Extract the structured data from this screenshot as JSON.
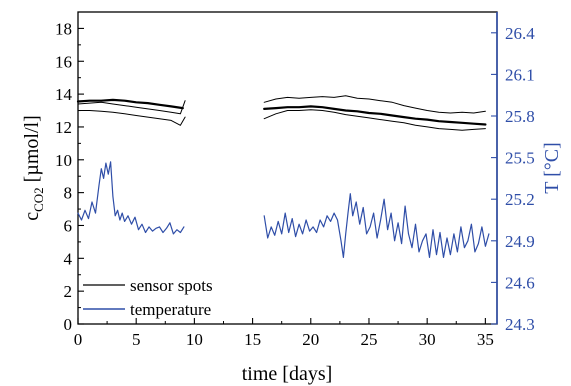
{
  "chart_data": {
    "type": "line",
    "xlabel": "time [days]",
    "ylabel_left": {
      "main": "c",
      "sub": "CO2",
      "unit": " [µmol/l]"
    },
    "ylabel_right": "T [°C]",
    "xlim": [
      0,
      36
    ],
    "ylim_left": [
      0,
      19
    ],
    "ylim_right": [
      24.3,
      26.55
    ],
    "x_ticks": [
      0,
      5,
      10,
      15,
      20,
      25,
      30,
      35
    ],
    "y_left_ticks": [
      0,
      2,
      4,
      6,
      8,
      10,
      12,
      14,
      16,
      18
    ],
    "y_right_ticks": [
      24.3,
      24.6,
      24.9,
      25.2,
      25.5,
      25.8,
      26.1,
      26.4
    ],
    "y_right_tick_labels": [
      "24.3",
      "24.6",
      "24.9",
      "25.2",
      "25.5",
      "25.8",
      "26.1",
      "26.4"
    ],
    "grid": false,
    "legend_position": "bottom-left",
    "legend": [
      {
        "label": "sensor spots",
        "color": "#000000"
      },
      {
        "label": "temperature",
        "color": "#2f4ea8"
      }
    ],
    "colors": {
      "sensor": "#000000",
      "temperature": "#2f4ea8",
      "right_axis": "#2f4ea8",
      "left_axis": "#000000"
    },
    "series": [
      {
        "name": "sensor spots",
        "axis": "left",
        "width": 1.0,
        "segments": [
          {
            "x": [
              0,
              1,
              2,
              3,
              4,
              5,
              6,
              7,
              8,
              8.8,
              9.2
            ],
            "y": [
              13.4,
              13.45,
              13.5,
              13.4,
              13.3,
              13.2,
              13.1,
              13.0,
              12.9,
              12.8,
              13.6
            ]
          },
          {
            "x": [
              16,
              17,
              18,
              19,
              20,
              21,
              22,
              23,
              24,
              25,
              26,
              27,
              28,
              29,
              30,
              31,
              32,
              33,
              34,
              35
            ],
            "y": [
              13.5,
              13.7,
              13.8,
              13.75,
              13.8,
              13.85,
              13.8,
              13.9,
              13.75,
              13.7,
              13.6,
              13.5,
              13.3,
              13.15,
              13.0,
              12.9,
              12.85,
              12.9,
              12.85,
              12.95
            ]
          }
        ]
      },
      {
        "name": "sensor spots",
        "axis": "left",
        "width": 2.2,
        "segments": [
          {
            "x": [
              0,
              1,
              2,
              3,
              4,
              5,
              6,
              7,
              8,
              9
            ],
            "y": [
              13.55,
              13.6,
              13.6,
              13.65,
              13.6,
              13.5,
              13.45,
              13.35,
              13.25,
              13.15
            ]
          },
          {
            "x": [
              16,
              17,
              18,
              19,
              20,
              21,
              22,
              23,
              24,
              25,
              26,
              27,
              28,
              29,
              30,
              31,
              32,
              33,
              34,
              35
            ],
            "y": [
              13.1,
              13.15,
              13.2,
              13.2,
              13.25,
              13.2,
              13.1,
              13.0,
              12.95,
              12.85,
              12.8,
              12.7,
              12.6,
              12.5,
              12.45,
              12.35,
              12.3,
              12.25,
              12.2,
              12.15
            ]
          }
        ]
      },
      {
        "name": "sensor spots",
        "axis": "left",
        "width": 1.0,
        "segments": [
          {
            "x": [
              0,
              1,
              2,
              3,
              4,
              5,
              6,
              7,
              8,
              8.8,
              9.2
            ],
            "y": [
              13.0,
              13.0,
              12.95,
              12.9,
              12.8,
              12.7,
              12.6,
              12.5,
              12.4,
              12.1,
              12.6
            ]
          },
          {
            "x": [
              16,
              17,
              18,
              19,
              20,
              21,
              22,
              23,
              24,
              25,
              26,
              27,
              28,
              29,
              30,
              31,
              32,
              33,
              34,
              35
            ],
            "y": [
              12.5,
              12.8,
              13.0,
              13.0,
              13.05,
              13.0,
              12.9,
              12.75,
              12.65,
              12.55,
              12.45,
              12.35,
              12.25,
              12.1,
              12.0,
              11.9,
              11.85,
              11.8,
              11.85,
              11.9
            ]
          }
        ]
      },
      {
        "name": "temperature",
        "axis": "right",
        "width": 1.2,
        "segments": [
          {
            "x": [
              0,
              0.3,
              0.6,
              0.9,
              1.2,
              1.5,
              1.8,
              2.0,
              2.2,
              2.4,
              2.6,
              2.8,
              3.0,
              3.2,
              3.4,
              3.6,
              3.8,
              4.0,
              4.3,
              4.6,
              4.9,
              5.2,
              5.5,
              5.8,
              6.1,
              6.4,
              6.7,
              7.0,
              7.3,
              7.6,
              7.9,
              8.2,
              8.5,
              8.8,
              9.1
            ],
            "y": [
              25.1,
              25.05,
              25.12,
              25.06,
              25.18,
              25.1,
              25.3,
              25.42,
              25.35,
              25.46,
              25.38,
              25.47,
              25.22,
              25.08,
              25.12,
              25.05,
              25.1,
              25.04,
              25.08,
              25.02,
              25.07,
              24.98,
              25.02,
              24.96,
              25.0,
              24.97,
              24.99,
              25.0,
              24.96,
              24.99,
              25.03,
              24.95,
              24.98,
              24.96,
              25.0
            ]
          },
          {
            "x": [
              16,
              16.3,
              16.6,
              16.9,
              17.2,
              17.5,
              17.8,
              18.1,
              18.4,
              18.7,
              19.0,
              19.3,
              19.6,
              19.9,
              20.2,
              20.5,
              20.8,
              21.1,
              21.4,
              21.7,
              22.0,
              22.3,
              22.6,
              22.8,
              23.0,
              23.2,
              23.4,
              23.6,
              23.9,
              24.2,
              24.5,
              24.8,
              25.1,
              25.4,
              25.7,
              26.0,
              26.3,
              26.6,
              26.9,
              27.2,
              27.5,
              27.8,
              28.1,
              28.4,
              28.7,
              29.0,
              29.3,
              29.6,
              29.9,
              30.2,
              30.5,
              30.8,
              31.1,
              31.4,
              31.7,
              32.0,
              32.3,
              32.6,
              32.9,
              33.2,
              33.5,
              33.8,
              34.1,
              34.4,
              34.7,
              35.0,
              35.3
            ],
            "y": [
              25.08,
              24.92,
              25.0,
              24.94,
              25.04,
              24.95,
              25.1,
              24.96,
              25.06,
              24.93,
              25.02,
              24.95,
              25.05,
              24.97,
              25.0,
              24.96,
              25.05,
              25.0,
              25.08,
              25.04,
              25.1,
              25.05,
              24.9,
              24.78,
              24.95,
              25.1,
              25.24,
              25.08,
              25.18,
              25.02,
              25.14,
              24.95,
              25.0,
              25.1,
              24.92,
              25.05,
              25.2,
              24.98,
              25.1,
              24.9,
              25.03,
              24.88,
              25.15,
              24.95,
              24.85,
              25.02,
              24.82,
              24.9,
              24.95,
              24.78,
              24.98,
              24.8,
              24.96,
              24.78,
              24.92,
              24.8,
              24.95,
              24.82,
              25.0,
              24.85,
              24.9,
              25.02,
              24.82,
              24.88,
              25.0,
              24.86,
              24.95
            ]
          }
        ]
      }
    ]
  }
}
